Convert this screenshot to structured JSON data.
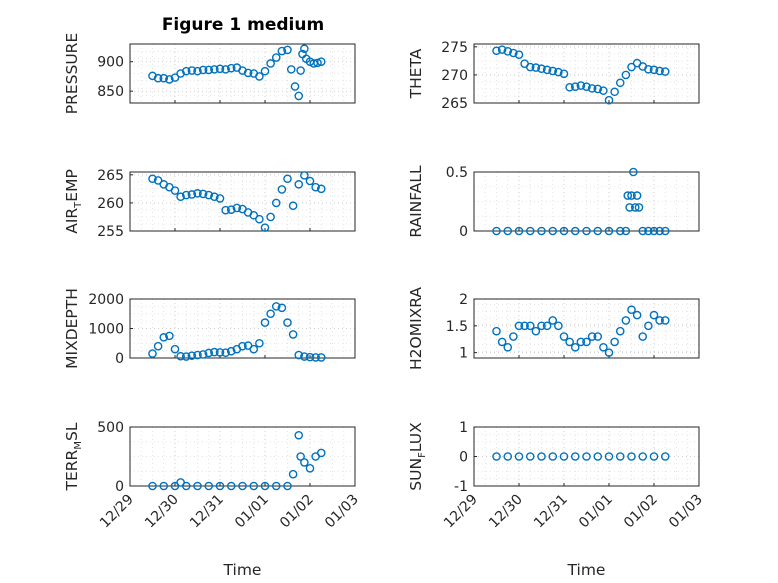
{
  "figure": {
    "title": "Figure 1 medium",
    "marker_color": "#0072bd",
    "grid": true,
    "x_axis": {
      "label": "Time",
      "range": [
        "2023-12-29",
        "2024-01-03"
      ],
      "tick_labels": [
        "12/29",
        "12/30",
        "12/31",
        "01/01",
        "01/02",
        "01/03"
      ]
    }
  },
  "chart_data": [
    {
      "type": "scatter",
      "panel": "top-left",
      "ylabel": "PRESSURE",
      "ylim": [
        830,
        930
      ],
      "yticks": [
        850,
        900
      ],
      "x": [
        "12/29 12:00",
        "12/29 15:00",
        "12/29 18:00",
        "12/29 21:00",
        "12/30 00:00",
        "12/30 03:00",
        "12/30 06:00",
        "12/30 09:00",
        "12/30 12:00",
        "12/30 15:00",
        "12/30 18:00",
        "12/30 21:00",
        "12/31 00:00",
        "12/31 03:00",
        "12/31 06:00",
        "12/31 09:00",
        "12/31 12:00",
        "12/31 15:00",
        "12/31 18:00",
        "12/31 21:00",
        "01/01 00:00",
        "01/01 03:00",
        "01/01 06:00",
        "01/01 09:00",
        "01/01 12:00",
        "01/01 14:00",
        "01/01 16:00",
        "01/01 18:00",
        "01/01 19:00",
        "01/01 20:00",
        "01/01 21:00",
        "01/01 22:00",
        "01/02 00:00",
        "01/02 02:00",
        "01/02 04:00",
        "01/02 06:00"
      ],
      "y": [
        876,
        872,
        872,
        870,
        873,
        880,
        884,
        885,
        884,
        886,
        886,
        887,
        888,
        887,
        889,
        890,
        885,
        881,
        880,
        875,
        884,
        897,
        907,
        918,
        920,
        887,
        858,
        842,
        885,
        913,
        922,
        905,
        900,
        897,
        898,
        900
      ]
    },
    {
      "type": "scatter",
      "panel": "top-right",
      "ylabel": "THETA",
      "ylim": [
        265,
        275.5
      ],
      "yticks": [
        265,
        270,
        275
      ],
      "x": [
        "12/29 12:00",
        "12/29 15:00",
        "12/29 18:00",
        "12/29 21:00",
        "12/30 00:00",
        "12/30 03:00",
        "12/30 06:00",
        "12/30 09:00",
        "12/30 12:00",
        "12/30 15:00",
        "12/30 18:00",
        "12/30 21:00",
        "12/31 00:00",
        "12/31 03:00",
        "12/31 06:00",
        "12/31 09:00",
        "12/31 12:00",
        "12/31 15:00",
        "12/31 18:00",
        "12/31 21:00",
        "01/01 00:00",
        "01/01 03:00",
        "01/01 06:00",
        "01/01 09:00",
        "01/01 12:00",
        "01/01 15:00",
        "01/01 18:00",
        "01/01 21:00",
        "01/02 00:00",
        "01/02 03:00",
        "01/02 06:00"
      ],
      "y": [
        274.3,
        274.5,
        274.2,
        273.9,
        273.6,
        272.0,
        271.4,
        271.3,
        271.1,
        270.9,
        270.7,
        270.5,
        270.2,
        267.8,
        267.9,
        268.1,
        267.9,
        267.6,
        267.5,
        267.2,
        265.5,
        267.0,
        268.6,
        270.0,
        271.4,
        272.1,
        271.5,
        271.0,
        270.9,
        270.7,
        270.6
      ]
    },
    {
      "type": "scatter",
      "panel": "row2-left",
      "ylabel": "AIR_TEMP",
      "ylim": [
        255,
        265.5
      ],
      "yticks": [
        255,
        260,
        265
      ],
      "x": [
        "12/29 12:00",
        "12/29 15:00",
        "12/29 18:00",
        "12/29 21:00",
        "12/30 00:00",
        "12/30 03:00",
        "12/30 06:00",
        "12/30 09:00",
        "12/30 12:00",
        "12/30 15:00",
        "12/30 18:00",
        "12/30 21:00",
        "12/31 00:00",
        "12/31 03:00",
        "12/31 06:00",
        "12/31 09:00",
        "12/31 12:00",
        "12/31 15:00",
        "12/31 18:00",
        "12/31 21:00",
        "01/01 00:00",
        "01/01 03:00",
        "01/01 06:00",
        "01/01 09:00",
        "01/01 12:00",
        "01/01 15:00",
        "01/01 18:00",
        "01/01 21:00",
        "01/02 00:00",
        "01/02 03:00",
        "01/02 06:00"
      ],
      "y": [
        264.3,
        264.0,
        263.3,
        262.8,
        262.2,
        261.1,
        261.4,
        261.5,
        261.7,
        261.6,
        261.4,
        261.1,
        260.8,
        258.7,
        258.8,
        259.1,
        258.9,
        258.3,
        257.8,
        257.1,
        255.6,
        257.5,
        260.0,
        262.4,
        264.3,
        259.5,
        263.3,
        264.9,
        263.9,
        262.8,
        262.5
      ]
    },
    {
      "type": "scatter",
      "panel": "row2-right",
      "ylabel": "RAINFALL",
      "ylim": [
        0,
        0.5
      ],
      "yticks": [
        0,
        0.5
      ],
      "x": [
        "12/29 12:00",
        "12/29 18:00",
        "12/30 00:00",
        "12/30 06:00",
        "12/30 12:00",
        "12/30 18:00",
        "12/31 00:00",
        "12/31 06:00",
        "12/31 12:00",
        "12/31 18:00",
        "01/01 00:00",
        "01/01 06:00",
        "01/01 09:00",
        "01/01 10:00",
        "01/01 11:00",
        "01/01 12:00",
        "01/01 13:00",
        "01/01 14:00",
        "01/01 15:00",
        "01/01 16:00",
        "01/01 18:00",
        "01/01 21:00",
        "01/02 00:00",
        "01/02 03:00",
        "01/02 06:00"
      ],
      "y": [
        0,
        0,
        0,
        0,
        0,
        0,
        0,
        0,
        0,
        0,
        0,
        0,
        0,
        0.3,
        0.2,
        0.3,
        0.5,
        0.2,
        0.3,
        0.2,
        0,
        0,
        0,
        0,
        0
      ]
    },
    {
      "type": "scatter",
      "panel": "row3-left",
      "ylabel": "MIXDEPTH",
      "ylim": [
        0,
        2000
      ],
      "yticks": [
        0,
        1000,
        2000
      ],
      "x": [
        "12/29 12:00",
        "12/29 15:00",
        "12/29 18:00",
        "12/29 21:00",
        "12/30 00:00",
        "12/30 03:00",
        "12/30 06:00",
        "12/30 09:00",
        "12/30 12:00",
        "12/30 15:00",
        "12/30 18:00",
        "12/30 21:00",
        "12/31 00:00",
        "12/31 03:00",
        "12/31 06:00",
        "12/31 09:00",
        "12/31 12:00",
        "12/31 15:00",
        "12/31 18:00",
        "12/31 21:00",
        "01/01 00:00",
        "01/01 03:00",
        "01/01 06:00",
        "01/01 09:00",
        "01/01 12:00",
        "01/01 15:00",
        "01/01 18:00",
        "01/01 21:00",
        "01/02 00:00",
        "01/02 03:00",
        "01/02 06:00"
      ],
      "y": [
        150,
        400,
        700,
        750,
        300,
        60,
        50,
        80,
        100,
        120,
        170,
        200,
        190,
        180,
        230,
        300,
        400,
        420,
        300,
        500,
        1200,
        1500,
        1750,
        1700,
        1200,
        800,
        100,
        50,
        30,
        20,
        20
      ]
    },
    {
      "type": "scatter",
      "panel": "row3-right",
      "ylabel": "H2OMIXRA",
      "ylim": [
        0.9,
        2
      ],
      "yticks": [
        1,
        1.5,
        2
      ],
      "x": [
        "12/29 12:00",
        "12/29 15:00",
        "12/29 18:00",
        "12/29 21:00",
        "12/30 00:00",
        "12/30 03:00",
        "12/30 06:00",
        "12/30 09:00",
        "12/30 12:00",
        "12/30 15:00",
        "12/30 18:00",
        "12/30 21:00",
        "12/31 00:00",
        "12/31 03:00",
        "12/31 06:00",
        "12/31 09:00",
        "12/31 12:00",
        "12/31 15:00",
        "12/31 18:00",
        "12/31 21:00",
        "01/01 00:00",
        "01/01 03:00",
        "01/01 06:00",
        "01/01 09:00",
        "01/01 12:00",
        "01/01 15:00",
        "01/01 18:00",
        "01/01 21:00",
        "01/02 00:00",
        "01/02 03:00",
        "01/02 06:00"
      ],
      "y": [
        1.4,
        1.2,
        1.1,
        1.3,
        1.5,
        1.5,
        1.5,
        1.4,
        1.5,
        1.5,
        1.6,
        1.5,
        1.3,
        1.2,
        1.1,
        1.2,
        1.2,
        1.3,
        1.3,
        1.1,
        1.0,
        1.2,
        1.4,
        1.6,
        1.8,
        1.7,
        1.3,
        1.5,
        1.7,
        1.6,
        1.6
      ]
    },
    {
      "type": "scatter",
      "panel": "bottom-left",
      "ylabel": "TERR_MSL",
      "ylim": [
        0,
        500
      ],
      "yticks": [
        0,
        500
      ],
      "x": [
        "12/29 12:00",
        "12/29 18:00",
        "12/30 00:00",
        "12/30 03:00",
        "12/30 06:00",
        "12/30 12:00",
        "12/30 18:00",
        "12/31 00:00",
        "12/31 06:00",
        "12/31 12:00",
        "12/31 18:00",
        "01/01 00:00",
        "01/01 06:00",
        "01/01 12:00",
        "01/01 15:00",
        "01/01 18:00",
        "01/01 19:00",
        "01/01 21:00",
        "01/02 00:00",
        "01/02 03:00",
        "01/02 06:00"
      ],
      "y": [
        0,
        0,
        0,
        30,
        0,
        0,
        0,
        0,
        0,
        0,
        0,
        0,
        0,
        0,
        100,
        430,
        250,
        200,
        150,
        250,
        280
      ]
    },
    {
      "type": "scatter",
      "panel": "bottom-right",
      "ylabel": "SUN_FLUX",
      "ylim": [
        -1,
        1
      ],
      "yticks": [
        -1,
        0,
        1
      ],
      "x": [
        "12/29 12:00",
        "12/29 18:00",
        "12/30 00:00",
        "12/30 06:00",
        "12/30 12:00",
        "12/30 18:00",
        "12/31 00:00",
        "12/31 06:00",
        "12/31 12:00",
        "12/31 18:00",
        "01/01 00:00",
        "01/01 06:00",
        "01/01 12:00",
        "01/01 18:00",
        "01/02 00:00",
        "01/02 06:00"
      ],
      "y": [
        0,
        0,
        0,
        0,
        0,
        0,
        0,
        0,
        0,
        0,
        0,
        0,
        0,
        0,
        0,
        0
      ]
    }
  ]
}
